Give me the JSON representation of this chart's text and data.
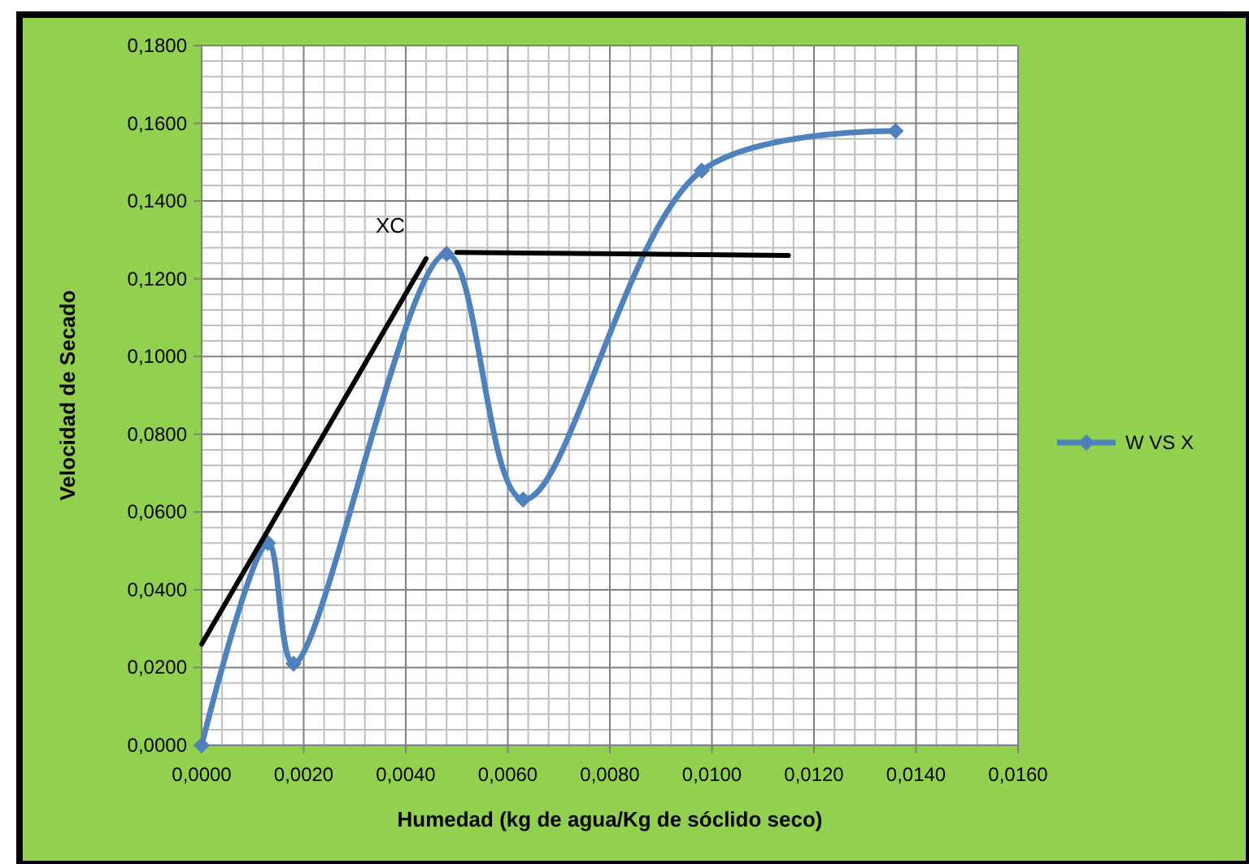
{
  "chart_data": {
    "type": "line",
    "xlabel": "Humedad (kg de agua/Kg de sóclido seco)",
    "ylabel": "Velocidad de Secado",
    "xlim": [
      0,
      0.016
    ],
    "ylim": [
      0,
      0.18
    ],
    "xticks": [
      {
        "value": 0,
        "label": "0,0000"
      },
      {
        "value": 0.002,
        "label": "0,0020"
      },
      {
        "value": 0.004,
        "label": "0,0040"
      },
      {
        "value": 0.006,
        "label": "0,0060"
      },
      {
        "value": 0.008,
        "label": "0,0080"
      },
      {
        "value": 0.01,
        "label": "0,0100"
      },
      {
        "value": 0.012,
        "label": "0,0120"
      },
      {
        "value": 0.014,
        "label": "0,0140"
      },
      {
        "value": 0.016,
        "label": "0,0160"
      }
    ],
    "yticks": [
      {
        "value": 0,
        "label": "0,0000"
      },
      {
        "value": 0.02,
        "label": "0,0200"
      },
      {
        "value": 0.04,
        "label": "0,0400"
      },
      {
        "value": 0.06,
        "label": "0,0600"
      },
      {
        "value": 0.08,
        "label": "0,0800"
      },
      {
        "value": 0.1,
        "label": "0,1000"
      },
      {
        "value": 0.12,
        "label": "0,1200"
      },
      {
        "value": 0.14,
        "label": "0,1400"
      },
      {
        "value": 0.16,
        "label": "0,1600"
      },
      {
        "value": 0.18,
        "label": "0,1800"
      }
    ],
    "grid": true,
    "legend": "right",
    "marker": "diamond",
    "line_style": "solid",
    "series": [
      {
        "name": "W VS X",
        "color": "#4f81bd",
        "x": [
          0,
          0.0013,
          0.0018,
          0.0048,
          0.0063,
          0.0098,
          0.0136
        ],
        "values": [
          0,
          0.052,
          0.021,
          0.1264,
          0.0632,
          0.1478,
          0.158
        ]
      },
      {
        "type": "line",
        "color": "#000000",
        "marker": "none",
        "x": [
          0,
          0.0044
        ],
        "values": [
          0.026,
          0.1252
        ]
      },
      {
        "type": "line",
        "color": "#000000",
        "marker": "none",
        "x": [
          0.005,
          0.0115
        ],
        "values": [
          0.1268,
          0.126
        ]
      }
    ],
    "annotations": [
      {
        "text": "XC",
        "x": 0.0044,
        "y": 0.1252
      }
    ]
  }
}
